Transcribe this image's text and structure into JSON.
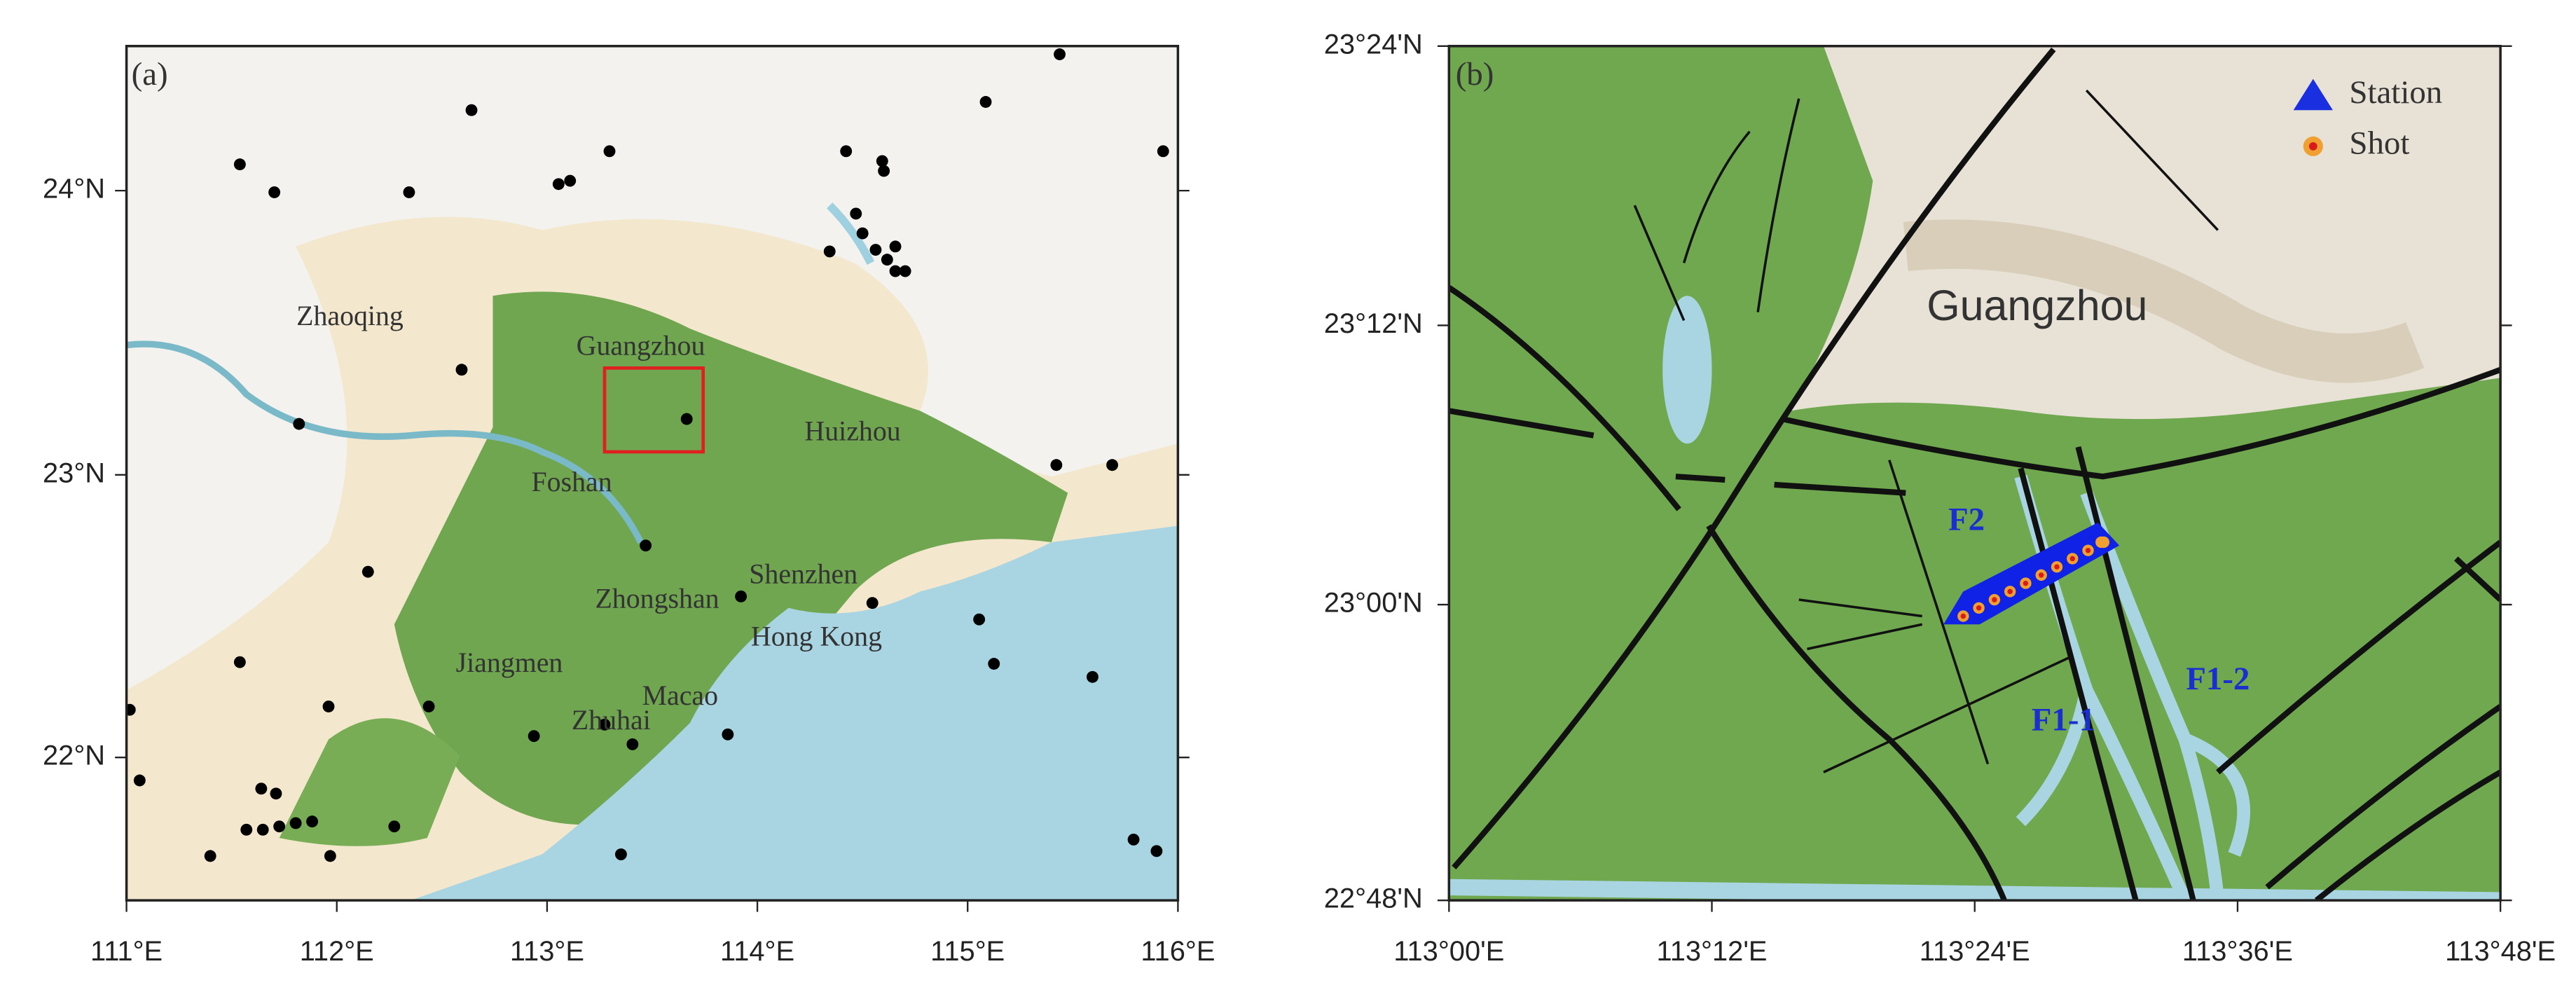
{
  "panel_a": {
    "label": "(a)",
    "x_ticks": [
      "111°E",
      "112°E",
      "113°E",
      "114°E",
      "115°E",
      "116°E"
    ],
    "y_ticks": [
      "24°N",
      "23°N",
      "22°N"
    ],
    "places": [
      "Zhaoqing",
      "Guangzhou",
      "Huizhou",
      "Foshan",
      "Zhongshan",
      "Shenzhen",
      "Hong Kong",
      "Jiangmen",
      "Macao",
      "Zhuhai"
    ]
  },
  "panel_b": {
    "label": "(b)",
    "x_ticks": [
      "113°00'E",
      "113°12'E",
      "113°24'E",
      "113°36'E",
      "113°48'E"
    ],
    "y_ticks": [
      "23°24'N",
      "23°12'N",
      "23°00'N",
      "22°48'N"
    ],
    "place": "Guangzhou",
    "legend": [
      "Station",
      "Shot"
    ],
    "faults": [
      "F2",
      "F1-1",
      "F1-2"
    ]
  }
}
